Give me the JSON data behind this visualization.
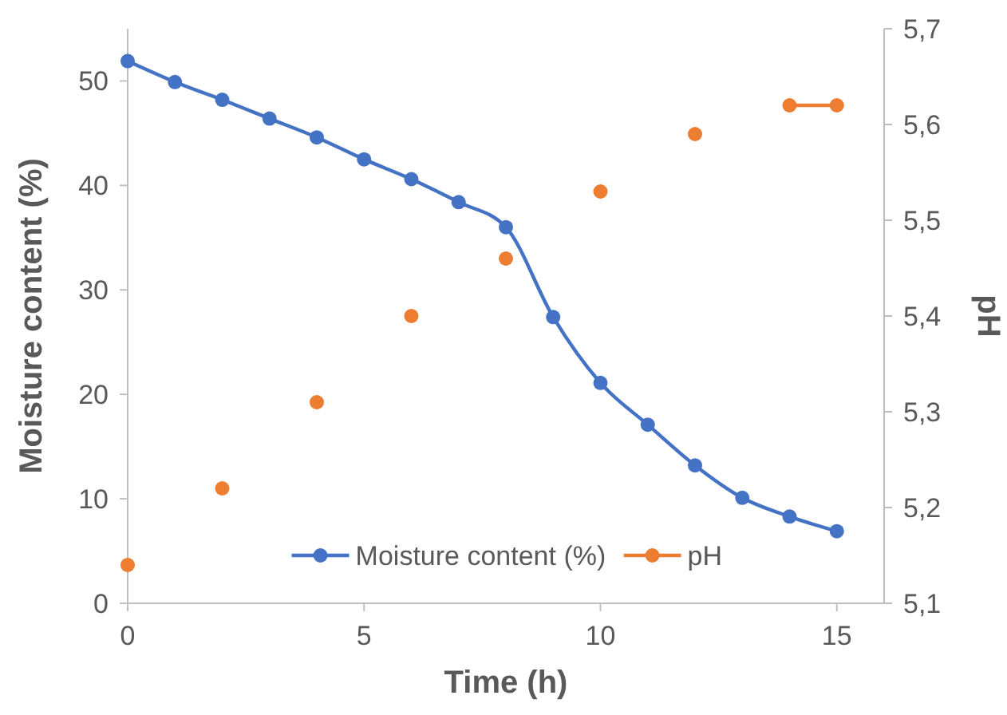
{
  "chart_data": {
    "type": "line",
    "xlabel": "Time (h)",
    "ylabel": "Moisture content (%)",
    "y2label": "pH",
    "x": [
      0,
      1,
      2,
      3,
      4,
      5,
      6,
      7,
      8,
      9,
      10,
      11,
      12,
      13,
      14,
      15
    ],
    "series": [
      {
        "name": "Moisture content (%)",
        "color": "#4472c4",
        "values": [
          51.9,
          49.9,
          48.2,
          46.4,
          44.6,
          42.5,
          40.6,
          38.4,
          36.0,
          27.4,
          21.1,
          17.1,
          13.2,
          10.1,
          8.3,
          6.9
        ]
      },
      {
        "name": "pH",
        "color": "#ed7d31",
        "axis": "y2",
        "values": [
          5.14,
          null,
          5.22,
          null,
          5.31,
          null,
          5.4,
          null,
          5.46,
          null,
          5.53,
          null,
          5.59,
          null,
          5.62,
          5.62
        ]
      }
    ],
    "xlim": [
      0,
      16
    ],
    "xticks": [
      0,
      5,
      10,
      15
    ],
    "ylim": [
      0,
      55
    ],
    "yticks": [
      0,
      10,
      20,
      30,
      40,
      50
    ],
    "y2lim": [
      5.1,
      5.7
    ],
    "y2ticks": [
      {
        "value": 5.1,
        "label": "5,1"
      },
      {
        "value": 5.2,
        "label": "5,2"
      },
      {
        "value": 5.3,
        "label": "5,3"
      },
      {
        "value": 5.4,
        "label": "5,4"
      },
      {
        "value": 5.5,
        "label": "5,5"
      },
      {
        "value": 5.6,
        "label": "5,6"
      },
      {
        "value": 5.7,
        "label": "5,7"
      }
    ],
    "grid": false,
    "legend": "bottom",
    "marker": "circle",
    "line_style": "solid"
  }
}
